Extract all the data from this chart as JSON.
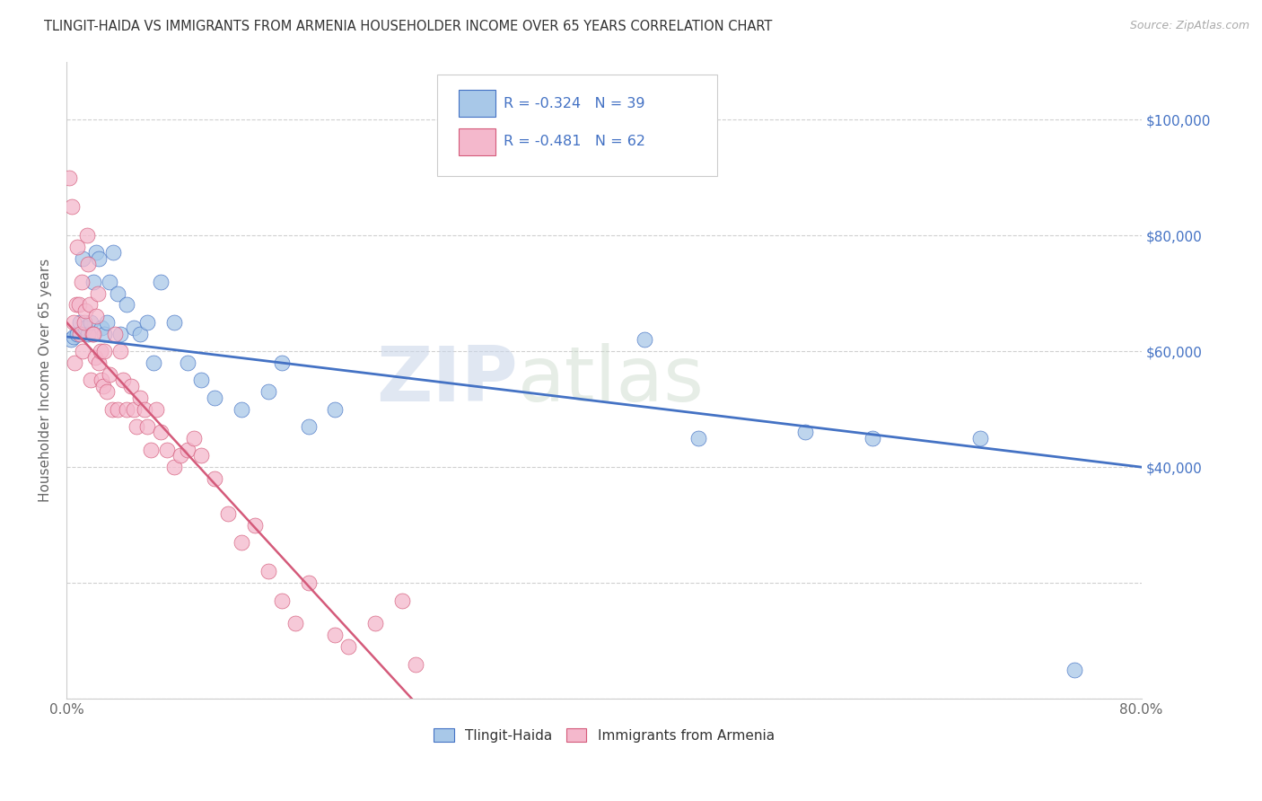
{
  "title": "TLINGIT-HAIDA VS IMMIGRANTS FROM ARMENIA HOUSEHOLDER INCOME OVER 65 YEARS CORRELATION CHART",
  "source": "Source: ZipAtlas.com",
  "ylabel": "Householder Income Over 65 years",
  "xlim": [
    0,
    0.8
  ],
  "ylim": [
    0,
    110000
  ],
  "xticks": [
    0.0,
    0.1,
    0.2,
    0.3,
    0.4,
    0.5,
    0.6,
    0.7,
    0.8
  ],
  "xticklabels": [
    "0.0%",
    "",
    "",
    "",
    "",
    "",
    "",
    "",
    "80.0%"
  ],
  "yticks_right": [
    40000,
    60000,
    80000,
    100000
  ],
  "ytick_labels_right": [
    "$40,000",
    "$60,000",
    "$80,000",
    "$100,000"
  ],
  "watermark_zip": "ZIP",
  "watermark_atlas": "atlas",
  "color_blue": "#a8c8e8",
  "color_pink": "#f4b8cc",
  "color_blue_dark": "#4472c4",
  "color_pink_dark": "#d45a7a",
  "color_title": "#333333",
  "color_source": "#999999",
  "color_raxis": "#4472c4",
  "tlingit_x": [
    0.003,
    0.005,
    0.008,
    0.01,
    0.012,
    0.014,
    0.016,
    0.018,
    0.02,
    0.022,
    0.024,
    0.026,
    0.028,
    0.03,
    0.032,
    0.035,
    0.038,
    0.04,
    0.045,
    0.05,
    0.055,
    0.06,
    0.065,
    0.07,
    0.08,
    0.09,
    0.1,
    0.11,
    0.13,
    0.15,
    0.16,
    0.18,
    0.2,
    0.43,
    0.47,
    0.55,
    0.6,
    0.68,
    0.75
  ],
  "tlingit_y": [
    62000,
    62500,
    63000,
    65000,
    76000,
    64000,
    63000,
    65000,
    72000,
    77000,
    76000,
    64000,
    63000,
    65000,
    72000,
    77000,
    70000,
    63000,
    68000,
    64000,
    63000,
    65000,
    58000,
    72000,
    65000,
    58000,
    55000,
    52000,
    50000,
    53000,
    58000,
    47000,
    50000,
    62000,
    45000,
    46000,
    45000,
    45000,
    5000
  ],
  "armenia_x": [
    0.002,
    0.004,
    0.005,
    0.006,
    0.007,
    0.008,
    0.009,
    0.01,
    0.011,
    0.012,
    0.013,
    0.014,
    0.015,
    0.016,
    0.017,
    0.018,
    0.019,
    0.02,
    0.021,
    0.022,
    0.023,
    0.024,
    0.025,
    0.026,
    0.027,
    0.028,
    0.03,
    0.032,
    0.034,
    0.036,
    0.038,
    0.04,
    0.042,
    0.045,
    0.048,
    0.05,
    0.052,
    0.055,
    0.058,
    0.06,
    0.063,
    0.067,
    0.07,
    0.075,
    0.08,
    0.085,
    0.09,
    0.095,
    0.1,
    0.11,
    0.12,
    0.13,
    0.14,
    0.15,
    0.16,
    0.17,
    0.18,
    0.2,
    0.21,
    0.23,
    0.25,
    0.26
  ],
  "armenia_y": [
    90000,
    85000,
    65000,
    58000,
    68000,
    78000,
    68000,
    63000,
    72000,
    60000,
    65000,
    67000,
    80000,
    75000,
    68000,
    55000,
    63000,
    63000,
    59000,
    66000,
    70000,
    58000,
    60000,
    55000,
    54000,
    60000,
    53000,
    56000,
    50000,
    63000,
    50000,
    60000,
    55000,
    50000,
    54000,
    50000,
    47000,
    52000,
    50000,
    47000,
    43000,
    50000,
    46000,
    43000,
    40000,
    42000,
    43000,
    45000,
    42000,
    38000,
    32000,
    27000,
    30000,
    22000,
    17000,
    13000,
    20000,
    11000,
    9000,
    13000,
    17000,
    6000
  ]
}
